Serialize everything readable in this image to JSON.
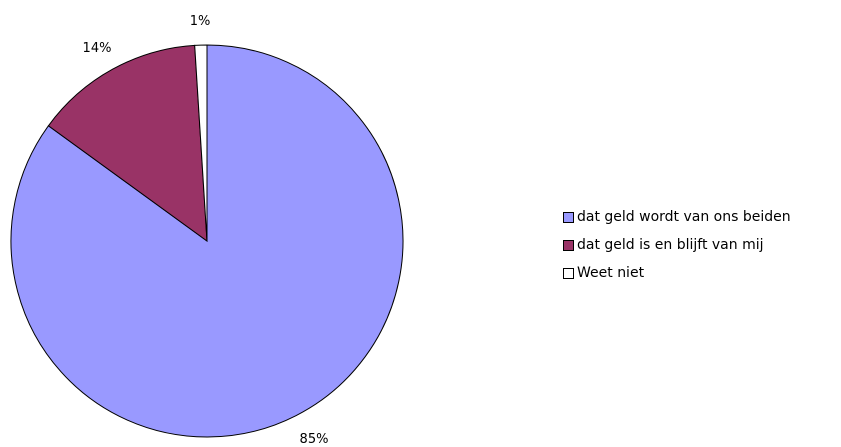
{
  "chart_data": {
    "type": "pie",
    "categories": [
      "dat geld wordt van ons beiden",
      "dat geld is en blijft van mij",
      "Weet niet"
    ],
    "values": [
      85,
      14,
      1
    ],
    "labels": [
      "85%",
      "14%",
      "1%"
    ],
    "colors": [
      "#9999ff",
      "#993366",
      "#ffffff"
    ],
    "start_angle_deg": 90,
    "direction": "clockwise",
    "legend_position": "right"
  }
}
